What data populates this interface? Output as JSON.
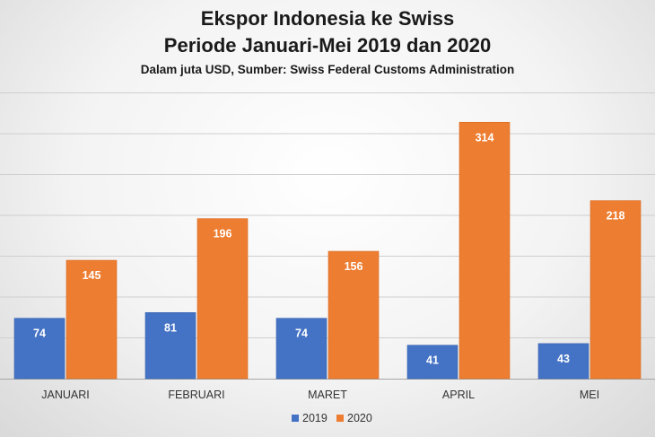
{
  "chart_data": {
    "type": "bar",
    "title": "Ekspor Indonesia ke Swiss",
    "subtitle": "Periode Januari-Mei 2019 dan 2020",
    "note": "Dalam juta USD, Sumber: Swiss Federal Customs Administration",
    "categories": [
      "JANUARI",
      "FEBRUARI",
      "MARET",
      "APRIL",
      "MEI"
    ],
    "series": [
      {
        "name": "2019",
        "color": "#4472c4",
        "values": [
          74,
          81,
          74,
          41,
          43
        ]
      },
      {
        "name": "2020",
        "color": "#ed7d31",
        "values": [
          145,
          196,
          156,
          314,
          218
        ]
      }
    ],
    "ylim": [
      0,
      350
    ],
    "grid": true,
    "legend": "bottom",
    "data_labels": true
  }
}
